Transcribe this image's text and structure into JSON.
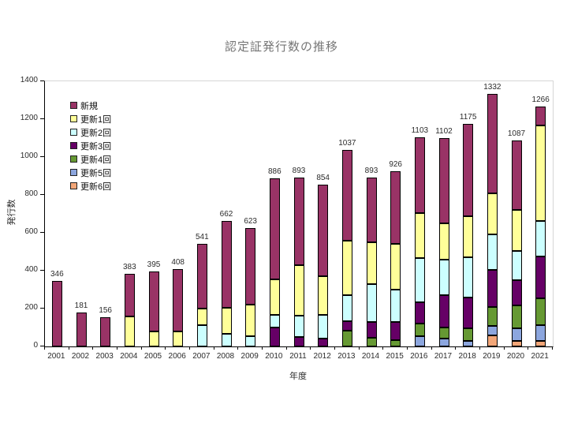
{
  "title": "認定証発行数の推移",
  "chart_data": {
    "type": "bar",
    "subtype": "stacked-vertical",
    "title": "認定証発行数の推移",
    "xlabel": "年度",
    "ylabel": "発行数",
    "ylim": [
      0,
      1400
    ],
    "yticks": [
      0,
      200,
      400,
      600,
      800,
      1000,
      1200,
      1400
    ],
    "grid": false,
    "legend_position": "inside-top-left",
    "categories": [
      "2001",
      "2002",
      "2003",
      "2004",
      "2005",
      "2006",
      "2007",
      "2008",
      "2009",
      "2010",
      "2011",
      "2012",
      "2013",
      "2014",
      "2015",
      "2016",
      "2017",
      "2018",
      "2019",
      "2020",
      "2021"
    ],
    "totals": [
      346,
      181,
      156,
      383,
      395,
      408,
      541,
      662,
      623,
      886,
      893,
      854,
      1037,
      893,
      926,
      1103,
      1102,
      1175,
      1332,
      1087,
      1266
    ],
    "stack_order_bottom_to_top": [
      "更新6回",
      "更新5回",
      "更新4回",
      "更新3回",
      "更新2回",
      "更新1回",
      "新規"
    ],
    "series": [
      {
        "name": "新規",
        "color": "#993366",
        "values": [
          346,
          181,
          156,
          223,
          315,
          328,
          341,
          459,
          403,
          531,
          464,
          483,
          480,
          343,
          383,
          397,
          452,
          488,
          522,
          365,
          100
        ]
      },
      {
        "name": "更新1回",
        "color": "#FFFF99",
        "values": [
          0,
          0,
          0,
          160,
          80,
          80,
          87,
          138,
          165,
          190,
          266,
          206,
          285,
          222,
          244,
          239,
          193,
          216,
          220,
          218,
          503
        ]
      },
      {
        "name": "更新2回",
        "color": "#CCFFFF",
        "values": [
          0,
          0,
          0,
          0,
          0,
          0,
          113,
          65,
          55,
          65,
          113,
          125,
          140,
          200,
          170,
          234,
          188,
          211,
          186,
          155,
          187
        ]
      },
      {
        "name": "更新3回",
        "color": "#660066",
        "values": [
          0,
          0,
          0,
          0,
          0,
          0,
          0,
          0,
          0,
          100,
          50,
          40,
          47,
          83,
          97,
          111,
          167,
          165,
          194,
          134,
          223
        ]
      },
      {
        "name": "更新4回",
        "color": "#669933",
        "values": [
          0,
          0,
          0,
          0,
          0,
          0,
          0,
          0,
          0,
          0,
          0,
          0,
          85,
          45,
          32,
          67,
          62,
          65,
          100,
          120,
          140
        ]
      },
      {
        "name": "更新5回",
        "color": "#8CA6DE",
        "values": [
          0,
          0,
          0,
          0,
          0,
          0,
          0,
          0,
          0,
          0,
          0,
          0,
          0,
          0,
          0,
          55,
          40,
          30,
          50,
          65,
          83
        ]
      },
      {
        "name": "更新6回",
        "color": "#F2A678",
        "values": [
          0,
          0,
          0,
          0,
          0,
          0,
          0,
          0,
          0,
          0,
          0,
          0,
          0,
          0,
          0,
          0,
          0,
          0,
          60,
          30,
          30
        ]
      }
    ]
  }
}
